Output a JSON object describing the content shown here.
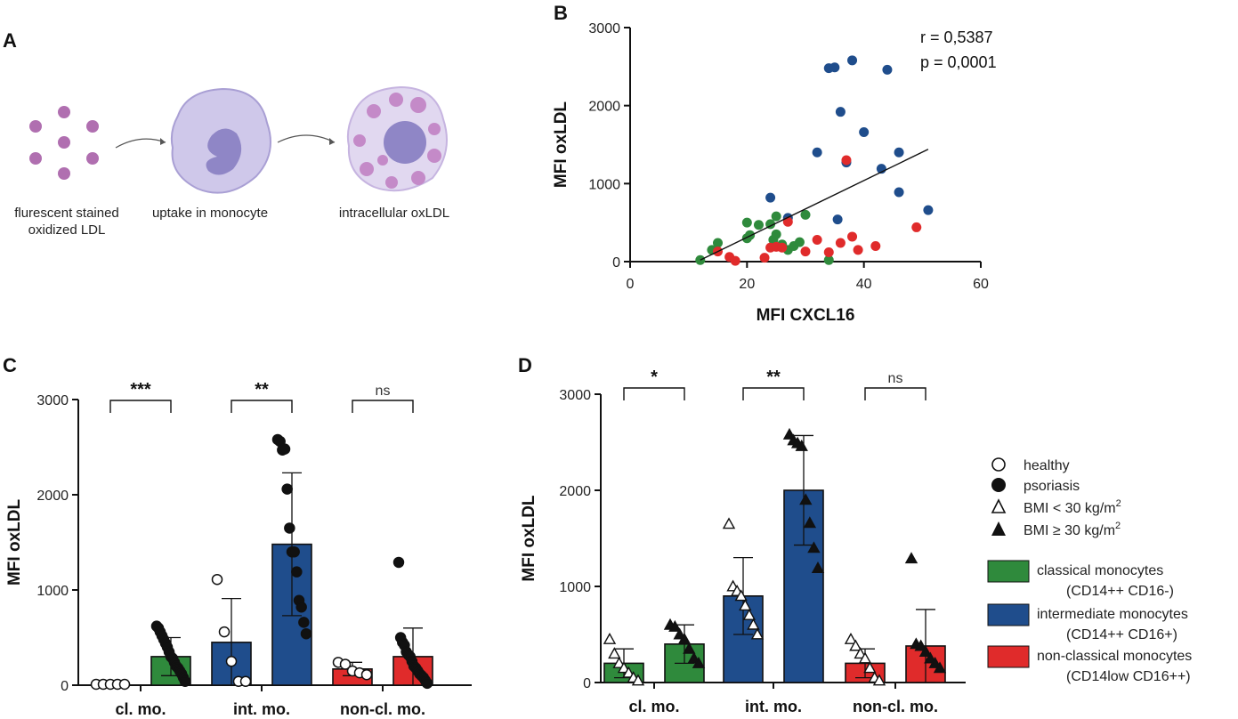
{
  "colors": {
    "green": "#2f8a3c",
    "blue": "#1f4d8c",
    "red": "#e02b2b",
    "black": "#111111",
    "lavender": "#cfc8ea",
    "purple": "#b06fb0"
  },
  "panel_a": {
    "label": "A",
    "captions": [
      "flurescent stained",
      "oxidized LDL",
      "uptake in monocyte",
      "intracellular oxLDL"
    ]
  },
  "chart_data": [
    {
      "id": "B",
      "type": "scatter",
      "panel_label": "B",
      "xlabel": "MFI CXCL16",
      "ylabel": "MFI oxLDL",
      "xlim": [
        0,
        60
      ],
      "ylim": [
        0,
        3000
      ],
      "xticks": [
        0,
        20,
        40,
        60
      ],
      "yticks": [
        0,
        1000,
        2000,
        3000
      ],
      "annotations": [
        "r = 0,5387",
        "p = 0,0001"
      ],
      "regression": {
        "x": [
          12,
          51
        ],
        "y": [
          20,
          1440
        ]
      },
      "series": [
        {
          "name": "classical monocytes",
          "color": "#2f8a3c",
          "x": [
            12,
            14,
            15,
            20,
            20.5,
            22,
            24,
            24.5,
            25,
            26,
            27,
            28,
            29,
            30,
            34,
            20,
            25
          ],
          "y": [
            20,
            150,
            240,
            500,
            340,
            470,
            480,
            280,
            580,
            220,
            150,
            200,
            250,
            600,
            20,
            300,
            350
          ]
        },
        {
          "name": "intermediate monocytes",
          "color": "#1f4d8c",
          "x": [
            24,
            27,
            32,
            34,
            35,
            36,
            37,
            38,
            40,
            43,
            44,
            46,
            46,
            51,
            35.5
          ],
          "y": [
            820,
            560,
            1400,
            2480,
            2490,
            1920,
            1270,
            2580,
            1660,
            1190,
            2460,
            1400,
            890,
            660,
            540
          ]
        },
        {
          "name": "non-classical monocytes",
          "color": "#e02b2b",
          "x": [
            15,
            17,
            18,
            23,
            24,
            25,
            27,
            30,
            32,
            34,
            36,
            37,
            38,
            39,
            42,
            49,
            26
          ],
          "y": [
            130,
            60,
            10,
            50,
            180,
            190,
            510,
            130,
            280,
            120,
            240,
            1300,
            320,
            150,
            200,
            440,
            180
          ]
        }
      ]
    },
    {
      "id": "C",
      "type": "bar",
      "panel_label": "C",
      "ylabel": "MFI oxLDL",
      "ylim": [
        0,
        3000
      ],
      "yticks": [
        0,
        1000,
        2000,
        3000
      ],
      "categories": [
        "cl. mo.",
        "int. mo.",
        "non-cl. mo."
      ],
      "significance": [
        "***",
        "**",
        "ns"
      ],
      "bars": [
        {
          "group": 0,
          "cohort": "healthy",
          "color": "#ffffff",
          "value": 0,
          "sd": 0,
          "points": [
            0,
            0,
            0,
            0,
            0
          ]
        },
        {
          "group": 0,
          "cohort": "psoriasis",
          "color": "#2f8a3c",
          "value": 300,
          "sd": 200,
          "points": [
            620,
            600,
            560,
            520,
            480,
            440,
            400,
            350,
            300,
            280,
            240,
            200,
            180,
            150,
            120,
            80,
            40
          ]
        },
        {
          "group": 1,
          "cohort": "healthy",
          "color": "#1f4d8c",
          "value": 450,
          "sd": 460,
          "points": [
            1110,
            560,
            250,
            40,
            40
          ]
        },
        {
          "group": 1,
          "cohort": "psoriasis",
          "color": "#1f4d8c",
          "value": 1480,
          "sd": 750,
          "points": [
            2580,
            2560,
            2470,
            2480,
            2060,
            1650,
            1400,
            1400,
            1190,
            890,
            820,
            660,
            540
          ]
        },
        {
          "group": 2,
          "cohort": "healthy",
          "color": "#e02b2b",
          "value": 170,
          "sd": 70,
          "points": [
            240,
            220,
            150,
            130,
            110
          ]
        },
        {
          "group": 2,
          "cohort": "psoriasis",
          "color": "#e02b2b",
          "value": 300,
          "sd": 300,
          "points": [
            1290,
            500,
            450,
            420,
            350,
            320,
            300,
            250,
            200,
            180,
            150,
            120,
            100,
            80,
            50,
            20
          ]
        }
      ]
    },
    {
      "id": "D",
      "type": "bar",
      "panel_label": "D",
      "ylabel": "MFI oxLDL",
      "ylim": [
        0,
        3000
      ],
      "yticks": [
        0,
        1000,
        2000,
        3000
      ],
      "categories": [
        "cl. mo.",
        "int. mo.",
        "non-cl. mo."
      ],
      "significance": [
        "*",
        "**",
        "ns"
      ],
      "bars": [
        {
          "group": 0,
          "cohort": "BMI < 30",
          "color": "#2f8a3c",
          "value": 200,
          "sd": 150,
          "points": [
            450,
            300,
            200,
            150,
            100,
            50,
            20
          ]
        },
        {
          "group": 0,
          "cohort": "BMI >= 30",
          "color": "#2f8a3c",
          "value": 400,
          "sd": 200,
          "points": [
            600,
            580,
            500,
            450,
            350,
            250,
            200
          ]
        },
        {
          "group": 1,
          "cohort": "BMI < 30",
          "color": "#1f4d8c",
          "value": 900,
          "sd": 400,
          "points": [
            1650,
            1000,
            950,
            900,
            800,
            700,
            600,
            500
          ]
        },
        {
          "group": 1,
          "cohort": "BMI >= 30",
          "color": "#1f4d8c",
          "value": 2000,
          "sd": 570,
          "points": [
            2580,
            2520,
            2490,
            2460,
            1900,
            1660,
            1400,
            1190
          ]
        },
        {
          "group": 2,
          "cohort": "BMI < 30",
          "color": "#e02b2b",
          "value": 200,
          "sd": 150,
          "points": [
            450,
            380,
            300,
            250,
            150,
            50,
            20
          ]
        },
        {
          "group": 2,
          "cohort": "BMI >= 30",
          "color": "#e02b2b",
          "value": 380,
          "sd": 380,
          "points": [
            1290,
            400,
            380,
            320,
            250,
            200,
            150
          ]
        }
      ]
    }
  ],
  "legend": {
    "markers": [
      {
        "label": "healthy",
        "marker": "open-circle"
      },
      {
        "label": "psoriasis",
        "marker": "filled-circle"
      },
      {
        "label": "BMI < 30 kg/m",
        "sup": "2",
        "marker": "open-triangle"
      },
      {
        "label": "BMI ≥  30 kg/m",
        "sup": "2",
        "marker": "filled-triangle"
      }
    ],
    "cell_types": [
      {
        "label": "classical monocytes",
        "sub": "(CD14++ CD16-)",
        "color": "#2f8a3c"
      },
      {
        "label": "intermediate monocytes",
        "sub": "(CD14++ CD16+)",
        "color": "#1f4d8c"
      },
      {
        "label": "non-classical monocytes",
        "sub": "(CD14low CD16++)",
        "color": "#e02b2b"
      }
    ]
  }
}
